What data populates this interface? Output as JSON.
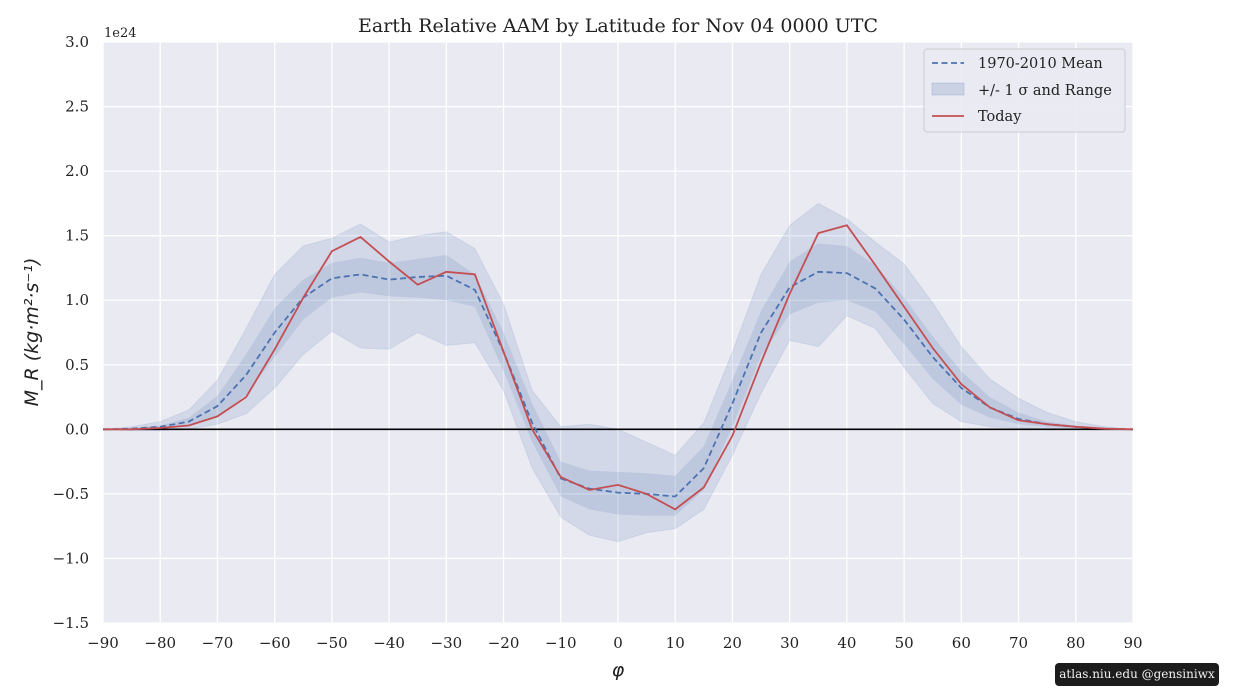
{
  "chart_data": {
    "type": "line",
    "title": "Earth Relative AAM by Latitude for Nov 04 0000 UTC",
    "xlabel": "φ",
    "ylabel": "M_R (kg·m²·s⁻¹)",
    "y_offset_label": "1e24",
    "xlim": [
      -90,
      90
    ],
    "ylim": [
      -1.5,
      3.0
    ],
    "xticks": [
      -90,
      -80,
      -70,
      -60,
      -50,
      -40,
      -30,
      -20,
      -10,
      0,
      10,
      20,
      30,
      40,
      50,
      60,
      70,
      80,
      90
    ],
    "xtick_labels": [
      "−90",
      "−80",
      "−70",
      "−60",
      "−50",
      "−40",
      "−30",
      "−20",
      "−10",
      "0",
      "10",
      "20",
      "30",
      "40",
      "50",
      "60",
      "70",
      "80",
      "90"
    ],
    "yticks": [
      -1.5,
      -1.0,
      -0.5,
      0.0,
      0.5,
      1.0,
      1.5,
      2.0,
      2.5,
      3.0
    ],
    "ytick_labels": [
      "−1.5",
      "−1.0",
      "−0.5",
      "0.0",
      "0.5",
      "1.0",
      "1.5",
      "2.0",
      "2.5",
      "3.0"
    ],
    "grid": true,
    "legend_position": "top-right",
    "legend": [
      "1970-2010 Mean",
      "+/- 1 σ and Range",
      "Today"
    ],
    "colors": {
      "mean": "#4c72b0",
      "today": "#c44e52",
      "band": "#4c72b0",
      "background": "#eaeaf2",
      "zero_line": "#000000"
    },
    "x": [
      -90,
      -85,
      -80,
      -75,
      -70,
      -65,
      -60,
      -55,
      -50,
      -45,
      -40,
      -35,
      -30,
      -25,
      -20,
      -15,
      -10,
      -5,
      0,
      5,
      10,
      15,
      20,
      25,
      30,
      35,
      40,
      45,
      50,
      55,
      60,
      65,
      70,
      75,
      80,
      85,
      90
    ],
    "series": [
      {
        "name": "1970-2010 Mean",
        "style": "dashed",
        "values": [
          0,
          0.005,
          0.02,
          0.06,
          0.18,
          0.42,
          0.75,
          1.02,
          1.17,
          1.2,
          1.16,
          1.18,
          1.19,
          1.08,
          0.6,
          0.05,
          -0.38,
          -0.46,
          -0.49,
          -0.5,
          -0.52,
          -0.3,
          0.2,
          0.75,
          1.1,
          1.22,
          1.21,
          1.09,
          0.85,
          0.56,
          0.32,
          0.17,
          0.08,
          0.04,
          0.02,
          0.005,
          0
        ]
      },
      {
        "name": "Today",
        "style": "solid",
        "values": [
          0,
          0,
          0.01,
          0.03,
          0.1,
          0.25,
          0.62,
          1.02,
          1.38,
          1.49,
          1.3,
          1.12,
          1.22,
          1.2,
          0.6,
          0.0,
          -0.37,
          -0.47,
          -0.43,
          -0.5,
          -0.62,
          -0.45,
          -0.05,
          0.52,
          1.05,
          1.52,
          1.58,
          1.27,
          0.95,
          0.63,
          0.35,
          0.17,
          0.07,
          0.04,
          0.02,
          0.005,
          0
        ]
      }
    ],
    "band_std": {
      "upper": [
        0,
        0.01,
        0.03,
        0.09,
        0.26,
        0.58,
        0.94,
        1.16,
        1.29,
        1.33,
        1.29,
        1.32,
        1.35,
        1.2,
        0.75,
        0.2,
        -0.25,
        -0.32,
        -0.33,
        -0.34,
        -0.36,
        -0.13,
        0.38,
        0.92,
        1.3,
        1.44,
        1.42,
        1.27,
        1.02,
        0.72,
        0.45,
        0.25,
        0.13,
        0.06,
        0.03,
        0.01,
        0
      ],
      "lower": [
        0,
        0,
        0.01,
        0.03,
        0.1,
        0.27,
        0.56,
        0.85,
        1.02,
        1.06,
        1.03,
        1.02,
        1.0,
        0.95,
        0.45,
        -0.1,
        -0.52,
        -0.62,
        -0.66,
        -0.67,
        -0.67,
        -0.47,
        0.02,
        0.57,
        0.89,
        0.98,
        1.0,
        0.91,
        0.66,
        0.39,
        0.19,
        0.09,
        0.04,
        0.02,
        0.01,
        0,
        0
      ]
    },
    "band_range": {
      "upper": [
        0,
        0.02,
        0.06,
        0.15,
        0.38,
        0.78,
        1.2,
        1.42,
        1.48,
        1.59,
        1.45,
        1.5,
        1.53,
        1.4,
        0.97,
        0.3,
        0.02,
        0.04,
        0.0,
        -0.1,
        -0.2,
        0.05,
        0.6,
        1.2,
        1.58,
        1.75,
        1.63,
        1.45,
        1.28,
        0.98,
        0.64,
        0.39,
        0.24,
        0.13,
        0.06,
        0.02,
        0
      ],
      "lower": [
        0,
        -0.01,
        -0.01,
        0,
        0.04,
        0.12,
        0.32,
        0.58,
        0.76,
        0.63,
        0.62,
        0.75,
        0.65,
        0.67,
        0.3,
        -0.3,
        -0.68,
        -0.82,
        -0.87,
        -0.8,
        -0.77,
        -0.62,
        -0.2,
        0.28,
        0.69,
        0.64,
        0.88,
        0.78,
        0.48,
        0.2,
        0.06,
        0.02,
        0.01,
        0,
        0,
        0,
        0
      ]
    }
  },
  "watermark": "atlas.niu.edu  @gensiniwx"
}
